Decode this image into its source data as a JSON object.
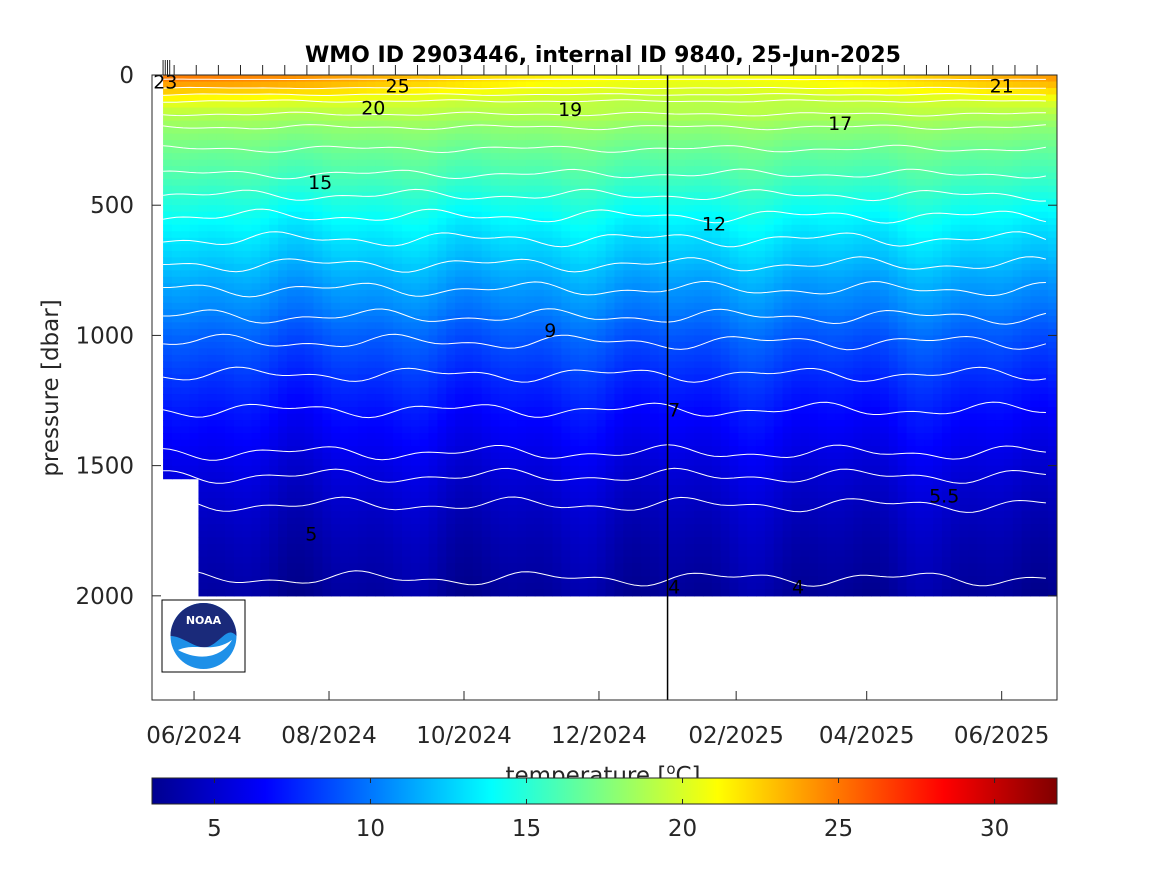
{
  "chart_data": {
    "type": "heatmap",
    "title": "WMO ID 2903446, internal ID 9840, 25-Jun-2025",
    "ylabel": "pressure [dbar]",
    "colorbar_label": "temperature [°C]",
    "colorbar_label_text": "temperature [",
    "colorbar_label_sup": "o",
    "colorbar_label_tail": "C]",
    "colormap": "jet",
    "y_reversed": true,
    "ylim": [
      0,
      2400
    ],
    "yticks": [
      0,
      500,
      1000,
      1500,
      2000
    ],
    "ytick_labels": [
      "0",
      "500",
      "1000",
      "1500",
      "2000"
    ],
    "xlim": [
      "2024-05-13",
      "2025-06-26"
    ],
    "xticks": [
      "2024-06-01",
      "2024-08-01",
      "2024-10-01",
      "2024-12-01",
      "2025-02-01",
      "2025-04-01",
      "2025-06-01"
    ],
    "xtick_labels": [
      "06/2024",
      "08/2024",
      "10/2024",
      "12/2024",
      "02/2025",
      "04/2025",
      "06/2025"
    ],
    "clim": [
      3,
      32
    ],
    "cticks": [
      5,
      10,
      15,
      20,
      25,
      30
    ],
    "ctick_labels": [
      "5",
      "10",
      "15",
      "20",
      "25",
      "30"
    ],
    "vertical_marker_date": "2025-01-01",
    "data_start_date": "2024-05-18",
    "data_end_date": "2025-06-23",
    "contour_levels": [
      4,
      5,
      5.5,
      6,
      7,
      8,
      9,
      10,
      11,
      12,
      13,
      14,
      15,
      16,
      17,
      18,
      19,
      20,
      21,
      22,
      23,
      24,
      25
    ],
    "depth_profile": {
      "pressure": [
        0,
        50,
        100,
        150,
        200,
        300,
        400,
        500,
        600,
        700,
        800,
        900,
        1000,
        1100,
        1200,
        1300,
        1400,
        1500,
        1600,
        1700,
        1800,
        1900,
        2000
      ],
      "temperature": [
        23.5,
        22,
        20,
        19,
        18,
        16.8,
        15.8,
        14.5,
        13.3,
        12.3,
        11.2,
        10.3,
        9.2,
        8.4,
        7.6,
        6.9,
        6.3,
        5.7,
        5.2,
        4.8,
        4.4,
        4.1,
        3.8
      ]
    },
    "contour_labels": [
      {
        "text": "23",
        "date": "2024-05-19",
        "pressure": 25
      },
      {
        "text": "25",
        "date": "2024-09-01",
        "pressure": 40
      },
      {
        "text": "20",
        "date": "2024-08-21",
        "pressure": 125
      },
      {
        "text": "19",
        "date": "2024-11-18",
        "pressure": 130
      },
      {
        "text": "21",
        "date": "2025-06-01",
        "pressure": 40
      },
      {
        "text": "17",
        "date": "2025-03-20",
        "pressure": 185
      },
      {
        "text": "15",
        "date": "2024-07-28",
        "pressure": 410
      },
      {
        "text": "12",
        "date": "2025-01-22",
        "pressure": 570
      },
      {
        "text": "9",
        "date": "2024-11-09",
        "pressure": 980
      },
      {
        "text": "7",
        "date": "2025-01-04",
        "pressure": 1285
      },
      {
        "text": "5.5",
        "date": "2025-05-06",
        "pressure": 1615
      },
      {
        "text": "5",
        "date": "2024-07-24",
        "pressure": 1760
      },
      {
        "text": "4",
        "date": "2025-01-04",
        "pressure": 1965
      },
      {
        "text": "4",
        "date": "2025-03-01",
        "pressure": 1965
      }
    ]
  },
  "logo": {
    "name": "NOAA",
    "text": "NOAA",
    "color_dark": "#1a2a7a",
    "color_light": "#1e90e8"
  }
}
